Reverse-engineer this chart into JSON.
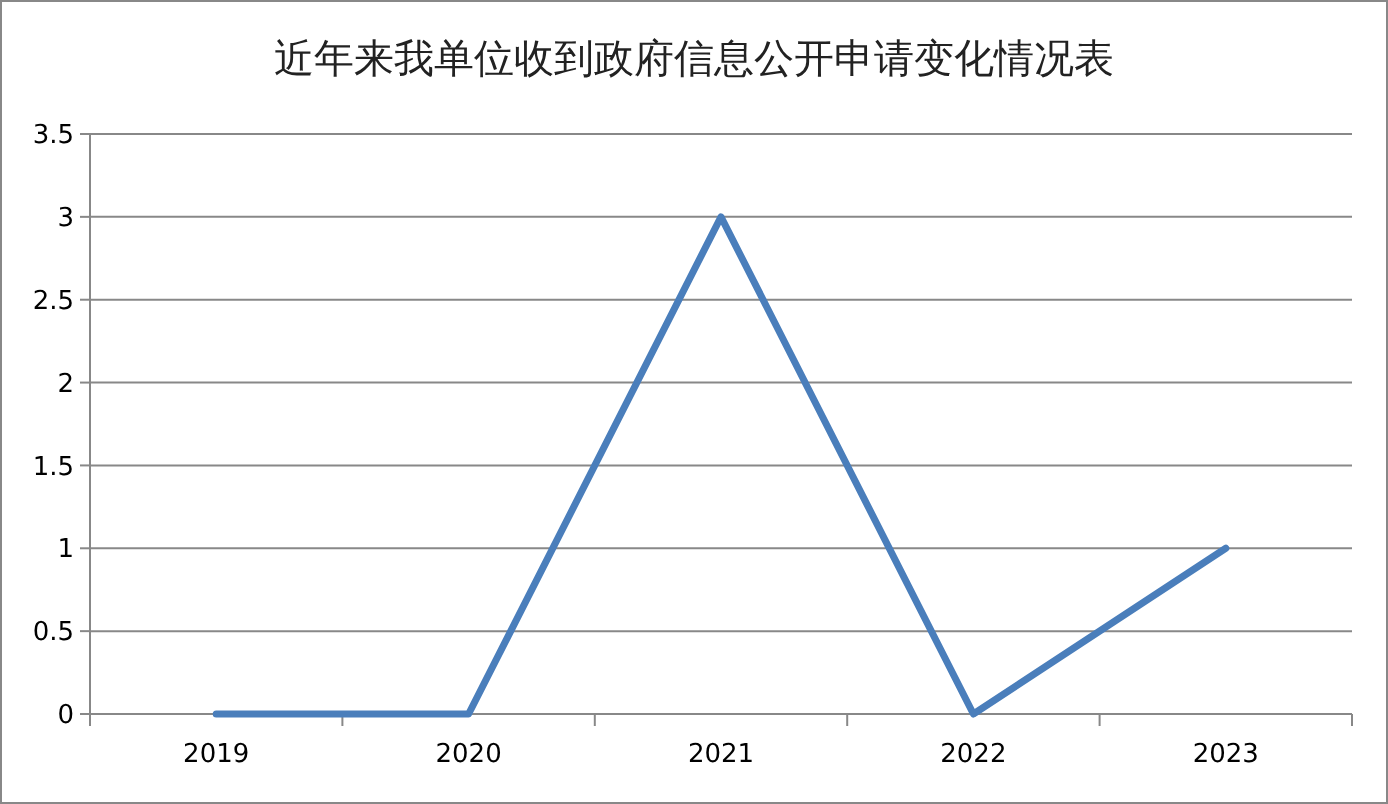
{
  "chart_data": {
    "type": "line",
    "title": "近年来我单位收到政府信息公开申请变化情况表",
    "categories": [
      "2019",
      "2020",
      "2021",
      "2022",
      "2023"
    ],
    "series": [
      {
        "color": "#4a7ebb",
        "values": [
          0,
          0,
          3,
          0,
          1
        ]
      }
    ],
    "ylim": [
      0,
      3.5
    ],
    "yticks": [
      0,
      0.5,
      1,
      1.5,
      2,
      2.5,
      3,
      3.5
    ],
    "grid": "y",
    "marker": "none",
    "line_style": "solid"
  }
}
